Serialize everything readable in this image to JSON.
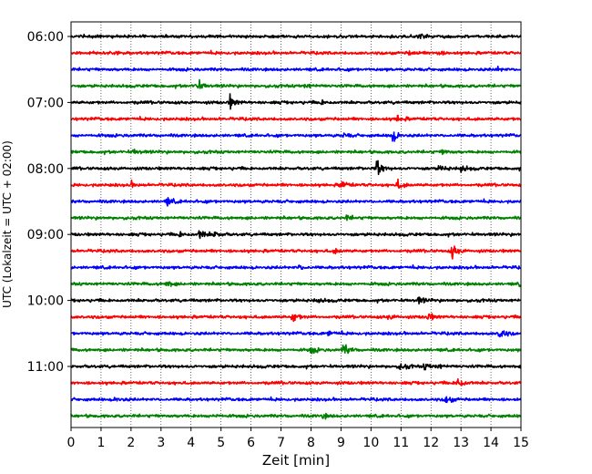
{
  "chart_data": {
    "type": "line",
    "title": "",
    "xlabel": "Zeit  [min]",
    "ylabel": "UTC (Lokalzeit = UTC + 02:00)",
    "xlim": [
      0,
      15
    ],
    "x_ticks": [
      0,
      1,
      2,
      3,
      4,
      5,
      6,
      7,
      8,
      9,
      10,
      11,
      12,
      13,
      14,
      15
    ],
    "y_time_ticks": [
      "06:00",
      "07:00",
      "08:00",
      "09:00",
      "10:00",
      "11:00"
    ],
    "grid_x": true,
    "row_interval_minutes": 15,
    "start_time": "06:00",
    "colors_cycle": [
      "#000000",
      "#ff0000",
      "#0000ff",
      "#008000"
    ],
    "rows": [
      {
        "time": "06:00",
        "color": "#000000",
        "events": [
          {
            "t": 11.6,
            "a": 0.5
          }
        ]
      },
      {
        "time": "06:15",
        "color": "#ff0000",
        "events": [
          {
            "t": 11.3,
            "a": 0.3
          },
          {
            "t": 12.2,
            "a": 0.3
          }
        ]
      },
      {
        "time": "06:30",
        "color": "#0000ff",
        "events": [
          {
            "t": 14.2,
            "a": 0.3
          }
        ]
      },
      {
        "time": "06:45",
        "color": "#008000",
        "events": [
          {
            "t": 4.2,
            "a": 0.8
          },
          {
            "t": 7.8,
            "a": 0.3
          }
        ]
      },
      {
        "time": "07:00",
        "color": "#000000",
        "events": [
          {
            "t": 5.3,
            "a": 0.8
          },
          {
            "t": 8.3,
            "a": 0.3
          }
        ]
      },
      {
        "time": "07:15",
        "color": "#ff0000",
        "events": [
          {
            "t": 10.9,
            "a": 0.5
          }
        ]
      },
      {
        "time": "07:30",
        "color": "#0000ff",
        "events": [
          {
            "t": 10.7,
            "a": 0.9
          },
          {
            "t": 9.1,
            "a": 0.3
          }
        ]
      },
      {
        "time": "07:45",
        "color": "#008000",
        "events": [
          {
            "t": 2.1,
            "a": 0.3
          },
          {
            "t": 12.4,
            "a": 0.3
          }
        ]
      },
      {
        "time": "08:00",
        "color": "#000000",
        "events": [
          {
            "t": 10.2,
            "a": 1.2
          },
          {
            "t": 12.3,
            "a": 0.5
          },
          {
            "t": 13.0,
            "a": 0.5
          }
        ]
      },
      {
        "time": "08:15",
        "color": "#ff0000",
        "events": [
          {
            "t": 9.0,
            "a": 0.6
          },
          {
            "t": 10.9,
            "a": 0.6
          },
          {
            "t": 2.0,
            "a": 0.3
          }
        ]
      },
      {
        "time": "08:30",
        "color": "#0000ff",
        "events": [
          {
            "t": 3.2,
            "a": 0.5
          }
        ]
      },
      {
        "time": "08:45",
        "color": "#008000",
        "events": [
          {
            "t": 9.2,
            "a": 0.3
          }
        ]
      },
      {
        "time": "09:00",
        "color": "#000000",
        "events": [
          {
            "t": 4.3,
            "a": 0.7
          },
          {
            "t": 4.8,
            "a": 0.4
          },
          {
            "t": 3.6,
            "a": 0.3
          }
        ]
      },
      {
        "time": "09:15",
        "color": "#ff0000",
        "events": [
          {
            "t": 12.7,
            "a": 1.0
          },
          {
            "t": 8.8,
            "a": 0.3
          }
        ]
      },
      {
        "time": "09:30",
        "color": "#0000ff",
        "events": [
          {
            "t": 7.6,
            "a": 0.3
          }
        ]
      },
      {
        "time": "09:45",
        "color": "#008000",
        "events": [
          {
            "t": 3.2,
            "a": 0.4
          },
          {
            "t": 15.0,
            "a": 0.4
          }
        ]
      },
      {
        "time": "10:00",
        "color": "#000000",
        "events": [
          {
            "t": 11.6,
            "a": 0.4
          },
          {
            "t": 8.2,
            "a": 0.3
          }
        ]
      },
      {
        "time": "10:15",
        "color": "#ff0000",
        "events": [
          {
            "t": 7.4,
            "a": 0.7
          },
          {
            "t": 11.9,
            "a": 0.5
          },
          {
            "t": 10.6,
            "a": 0.3
          }
        ]
      },
      {
        "time": "10:30",
        "color": "#0000ff",
        "events": [
          {
            "t": 14.3,
            "a": 0.8
          },
          {
            "t": 8.6,
            "a": 0.3
          }
        ]
      },
      {
        "time": "10:45",
        "color": "#008000",
        "events": [
          {
            "t": 9.1,
            "a": 0.8
          },
          {
            "t": 8.0,
            "a": 0.4
          }
        ]
      },
      {
        "time": "11:00",
        "color": "#000000",
        "events": [
          {
            "t": 11.0,
            "a": 0.5
          },
          {
            "t": 11.8,
            "a": 0.4
          },
          {
            "t": 12.2,
            "a": 0.3
          }
        ]
      },
      {
        "time": "11:15",
        "color": "#ff0000",
        "events": [
          {
            "t": 12.9,
            "a": 0.8
          }
        ]
      },
      {
        "time": "11:30",
        "color": "#0000ff",
        "events": [
          {
            "t": 12.5,
            "a": 0.6
          },
          {
            "t": 1.5,
            "a": 0.3
          }
        ]
      },
      {
        "time": "11:45",
        "color": "#008000",
        "events": [
          {
            "t": 4.8,
            "a": 0.3
          },
          {
            "t": 8.4,
            "a": 0.3
          }
        ]
      }
    ]
  }
}
